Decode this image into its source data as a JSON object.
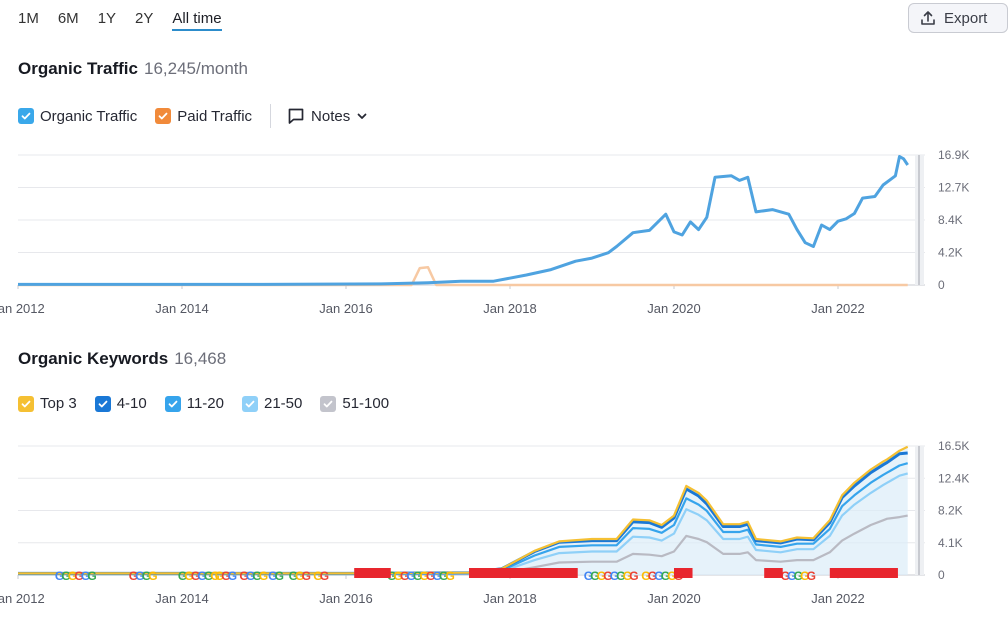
{
  "range_tabs": [
    "1M",
    "6M",
    "1Y",
    "2Y",
    "All time"
  ],
  "active_range": "All time",
  "export_label": "Export",
  "traffic": {
    "title": "Organic Traffic",
    "value": "16,245/month",
    "legend": [
      {
        "label": "Organic Traffic",
        "color": "#3aa8ea",
        "checked": true
      },
      {
        "label": "Paid Traffic",
        "color": "#f18a3a",
        "checked": true
      }
    ],
    "notes_label": "Notes"
  },
  "keywords": {
    "title": "Organic Keywords",
    "value": "16,468",
    "legend": [
      {
        "label": "Top 3",
        "color": "#f5c033",
        "checked": true
      },
      {
        "label": "4-10",
        "color": "#1a78d6",
        "checked": true
      },
      {
        "label": "11-20",
        "color": "#36a4ec",
        "checked": true
      },
      {
        "label": "21-50",
        "color": "#8fd0f8",
        "checked": true
      },
      {
        "label": "51-100",
        "color": "#c3c4cc",
        "checked": true
      }
    ]
  },
  "chart_data": [
    {
      "type": "line",
      "title": "Organic Traffic",
      "x_ticks": [
        "Jan 2012",
        "Jan 2014",
        "Jan 2016",
        "Jan 2018",
        "Jan 2020",
        "Jan 2022"
      ],
      "y_ticks": [
        "16.9K",
        "12.7K",
        "8.4K",
        "4.2K",
        "0"
      ],
      "ylim": [
        0,
        16900
      ],
      "grid": true,
      "series": [
        {
          "name": "Organic Traffic",
          "color": "#4fa3e0",
          "points": [
            [
              2012.0,
              80
            ],
            [
              2015.0,
              80
            ],
            [
              2016.5,
              150
            ],
            [
              2017.0,
              300
            ],
            [
              2017.4,
              500
            ],
            [
              2017.8,
              500
            ],
            [
              2018.2,
              1300
            ],
            [
              2018.5,
              2000
            ],
            [
              2018.8,
              3100
            ],
            [
              2019.0,
              3500
            ],
            [
              2019.2,
              4200
            ],
            [
              2019.3,
              5000
            ],
            [
              2019.5,
              6800
            ],
            [
              2019.7,
              7100
            ],
            [
              2019.9,
              9200
            ],
            [
              2020.0,
              6900
            ],
            [
              2020.1,
              6500
            ],
            [
              2020.2,
              8200
            ],
            [
              2020.3,
              7200
            ],
            [
              2020.4,
              8800
            ],
            [
              2020.5,
              14000
            ],
            [
              2020.7,
              14200
            ],
            [
              2020.8,
              13600
            ],
            [
              2020.9,
              14000
            ],
            [
              2021.0,
              9500
            ],
            [
              2021.2,
              9800
            ],
            [
              2021.4,
              9200
            ],
            [
              2021.5,
              7200
            ],
            [
              2021.6,
              5500
            ],
            [
              2021.7,
              5000
            ],
            [
              2021.8,
              7800
            ],
            [
              2021.9,
              7200
            ],
            [
              2022.0,
              8300
            ],
            [
              2022.1,
              8600
            ],
            [
              2022.2,
              9300
            ],
            [
              2022.3,
              11300
            ],
            [
              2022.45,
              11500
            ],
            [
              2022.55,
              13000
            ],
            [
              2022.7,
              14200
            ],
            [
              2022.75,
              16700
            ],
            [
              2022.8,
              16400
            ],
            [
              2022.85,
              15600
            ]
          ]
        },
        {
          "name": "Paid Traffic",
          "color": "#f7c9a3",
          "points": [
            [
              2012.0,
              0
            ],
            [
              2016.8,
              0
            ],
            [
              2016.9,
              2200
            ],
            [
              2017.0,
              2300
            ],
            [
              2017.1,
              0
            ],
            [
              2022.85,
              0
            ]
          ]
        }
      ]
    },
    {
      "type": "area",
      "title": "Organic Keywords",
      "x_ticks": [
        "Jan 2012",
        "Jan 2014",
        "Jan 2016",
        "Jan 2018",
        "Jan 2020",
        "Jan 2022"
      ],
      "y_ticks": [
        "16.5K",
        "12.4K",
        "8.2K",
        "4.1K",
        "0"
      ],
      "ylim": [
        0,
        16500
      ],
      "grid": true,
      "x": [
        2012.0,
        2016.0,
        2017.5,
        2017.9,
        2018.3,
        2018.6,
        2019.0,
        2019.3,
        2019.5,
        2019.7,
        2019.85,
        2020.0,
        2020.15,
        2020.3,
        2020.4,
        2020.6,
        2020.8,
        2020.9,
        2021.0,
        2021.3,
        2021.5,
        2021.7,
        2021.9,
        2022.05,
        2022.2,
        2022.4,
        2022.55,
        2022.6,
        2022.75,
        2022.85
      ],
      "series": [
        {
          "name": "Top 3",
          "color": "#f5c033",
          "values": [
            200,
            200,
            300,
            800,
            3100,
            4300,
            4600,
            4600,
            7100,
            7000,
            6400,
            7600,
            11400,
            10500,
            9500,
            6500,
            6500,
            6800,
            4600,
            4300,
            4800,
            4700,
            7000,
            10200,
            11800,
            13500,
            14500,
            14800,
            15900,
            16400
          ]
        },
        {
          "name": "4-10",
          "color": "#1a78d6",
          "values": [
            200,
            200,
            300,
            800,
            3000,
            4200,
            4400,
            4400,
            6800,
            6700,
            6100,
            7300,
            11000,
            10100,
            9100,
            6200,
            6200,
            6500,
            4400,
            4100,
            4600,
            4500,
            6700,
            9900,
            11400,
            13100,
            14100,
            14400,
            15500,
            15600
          ]
        },
        {
          "name": "11-20",
          "color": "#36a4ec",
          "values": [
            150,
            150,
            250,
            600,
            2500,
            3600,
            3800,
            3800,
            6000,
            5900,
            5400,
            6400,
            9800,
            9000,
            8200,
            5500,
            5500,
            5800,
            3900,
            3600,
            4000,
            4000,
            5900,
            8800,
            10200,
            11800,
            12800,
            13100,
            14000,
            14300
          ]
        },
        {
          "name": "21-50",
          "color": "#8fd0f8",
          "values": [
            100,
            100,
            200,
            450,
            1900,
            2800,
            3000,
            3000,
            4900,
            4800,
            4400,
            5300,
            8400,
            7700,
            7000,
            4600,
            4600,
            4900,
            3200,
            2900,
            3300,
            3300,
            5000,
            7600,
            9000,
            10500,
            11500,
            11800,
            12700,
            13000
          ]
        },
        {
          "name": "51-100",
          "color": "#b9bac3",
          "values": [
            60,
            60,
            100,
            250,
            1000,
            1600,
            1700,
            1700,
            2700,
            2600,
            2400,
            3000,
            5000,
            4600,
            4200,
            2700,
            2700,
            2900,
            1900,
            1700,
            1900,
            1900,
            2900,
            4400,
            5300,
            6400,
            7000,
            7200,
            7400,
            7600
          ]
        }
      ]
    }
  ]
}
